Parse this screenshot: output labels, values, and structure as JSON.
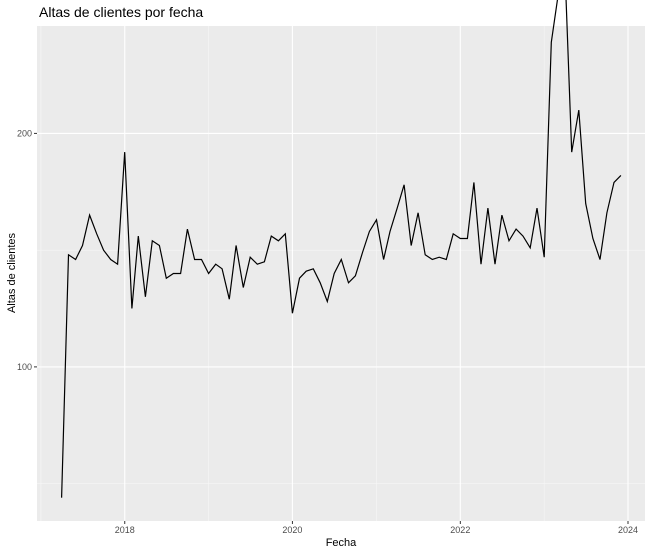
{
  "chart_data": {
    "type": "line",
    "title": "Altas de clientes por fecha",
    "xlabel": "Fecha",
    "ylabel": "Altas de clientes",
    "xlim": [
      "2016-12-15",
      "2024-03-15"
    ],
    "ylim": [
      34,
      246
    ],
    "x_ticks": [
      "2018",
      "2020",
      "2022",
      "2024"
    ],
    "y_ticks": [
      100,
      200
    ],
    "grid": true,
    "line_color": "#000000",
    "panel_background": "#ebebeb",
    "grid_color": "#ffffff",
    "series": [
      {
        "x": [
          "2017-04",
          "2017-05",
          "2017-06",
          "2017-07",
          "2017-08",
          "2017-09",
          "2017-10",
          "2017-11",
          "2017-12",
          "2018-01",
          "2018-02",
          "2018-03",
          "2018-04",
          "2018-05",
          "2018-06",
          "2018-07",
          "2018-08",
          "2018-09",
          "2018-10",
          "2018-11",
          "2018-12",
          "2019-01",
          "2019-02",
          "2019-03",
          "2019-04",
          "2019-05",
          "2019-06",
          "2019-07",
          "2019-08",
          "2019-09",
          "2019-10",
          "2019-11",
          "2019-12",
          "2020-01",
          "2020-02",
          "2020-03",
          "2020-04",
          "2020-05",
          "2020-06",
          "2020-07",
          "2020-08",
          "2020-09",
          "2020-10",
          "2020-11",
          "2020-12",
          "2021-01",
          "2021-02",
          "2021-03",
          "2021-04",
          "2021-05",
          "2021-06",
          "2021-07",
          "2021-08",
          "2021-09",
          "2021-10",
          "2021-11",
          "2021-12",
          "2022-01",
          "2022-02",
          "2022-03",
          "2022-04",
          "2022-05",
          "2022-06",
          "2022-07",
          "2022-08",
          "2022-09",
          "2022-10",
          "2022-11",
          "2022-12",
          "2023-01",
          "2023-02",
          "2023-03",
          "2023-04",
          "2023-05",
          "2023-06",
          "2023-07",
          "2023-08",
          "2023-09",
          "2023-10",
          "2023-11",
          "2023-12"
        ],
        "values": [
          44,
          148,
          146,
          152,
          165,
          157,
          150,
          146,
          144,
          192,
          125,
          156,
          130,
          154,
          152,
          138,
          140,
          140,
          159,
          146,
          146,
          140,
          144,
          142,
          129,
          152,
          134,
          147,
          144,
          145,
          156,
          154,
          157,
          123,
          138,
          141,
          142,
          136,
          128,
          140,
          146,
          136,
          139,
          149,
          158,
          163,
          146,
          158,
          168,
          178,
          152,
          166,
          148,
          146,
          147,
          146,
          157,
          155,
          155,
          179,
          144,
          168,
          144,
          165,
          154,
          159,
          156,
          151,
          168,
          147,
          239,
          258,
          272,
          192,
          210,
          170,
          155,
          146,
          166,
          179,
          182
        ]
      }
    ]
  }
}
